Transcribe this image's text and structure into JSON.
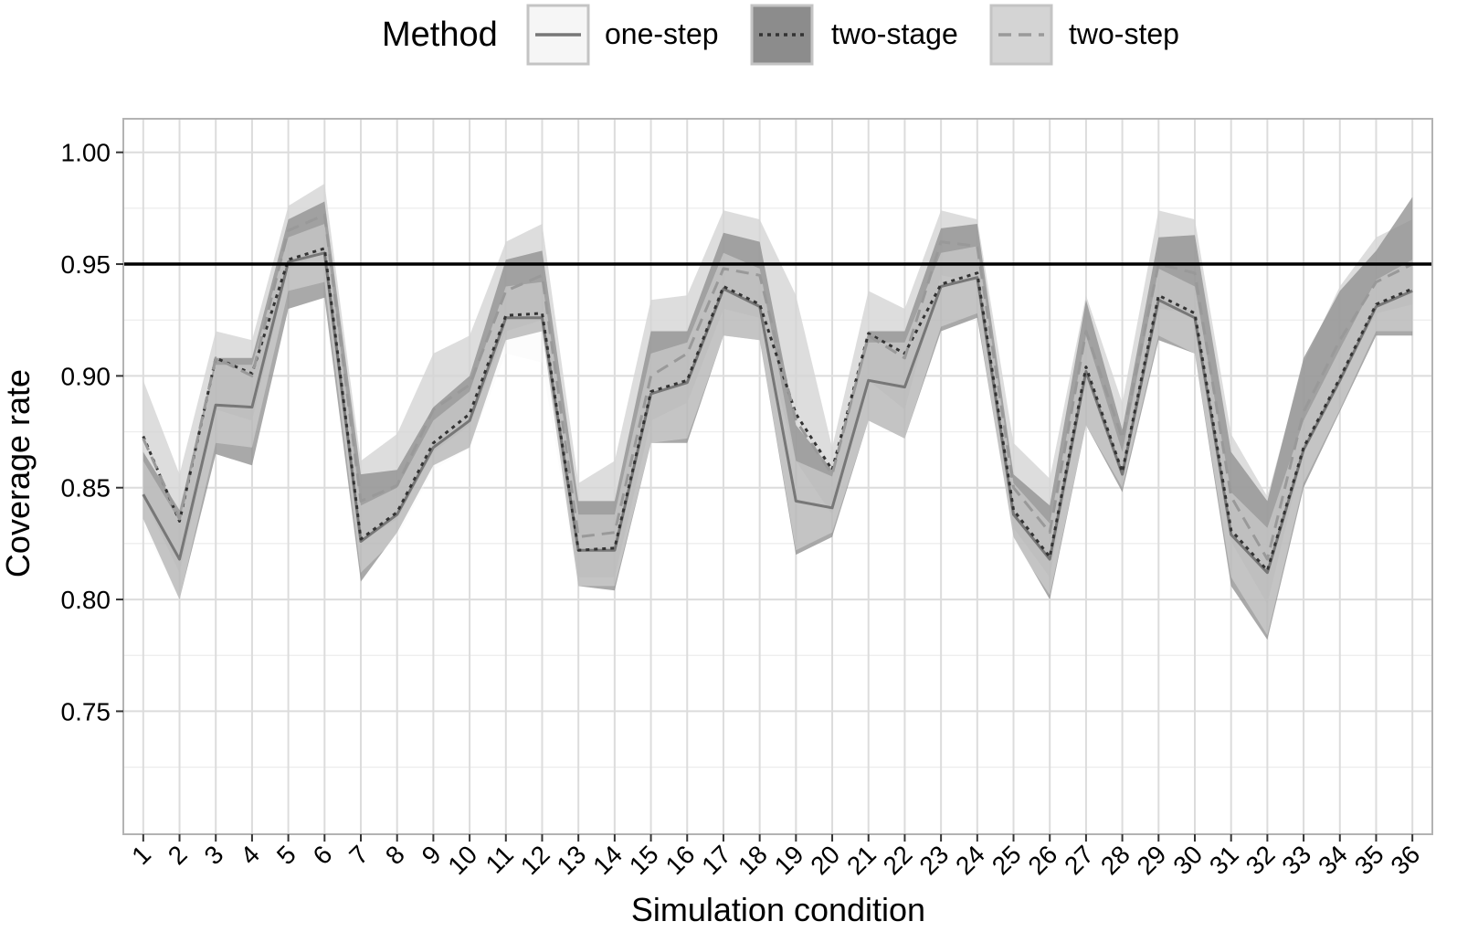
{
  "chart_data": {
    "type": "line",
    "title": "",
    "xlabel": "Simulation condition",
    "ylabel": "Coverage rate",
    "ylim": [
      0.695,
      1.015
    ],
    "yticks": [
      0.75,
      0.8,
      0.85,
      0.9,
      0.95,
      1.0
    ],
    "ytick_labels": [
      "0.75",
      "0.80",
      "0.85",
      "0.90",
      "0.95",
      "1.00"
    ],
    "x": [
      1,
      2,
      3,
      4,
      5,
      6,
      7,
      8,
      9,
      10,
      11,
      12,
      13,
      14,
      15,
      16,
      17,
      18,
      19,
      20,
      21,
      22,
      23,
      24,
      25,
      26,
      27,
      28,
      29,
      30,
      31,
      32,
      33,
      34,
      35,
      36
    ],
    "x_tick_labels": [
      "1",
      "2",
      "3",
      "4",
      "5",
      "6",
      "7",
      "8",
      "9",
      "10",
      "11",
      "12",
      "13",
      "14",
      "15",
      "16",
      "17",
      "18",
      "19",
      "20",
      "21",
      "22",
      "23",
      "24",
      "25",
      "26",
      "27",
      "28",
      "29",
      "30",
      "31",
      "32",
      "33",
      "34",
      "35",
      "36"
    ],
    "reference_line": 0.95,
    "grid": true,
    "legend": {
      "title": "Method",
      "position": "top"
    },
    "series": [
      {
        "name": "one-step",
        "line_style": "solid",
        "band_color": "#f6f6f6",
        "line_color": "#777777",
        "values": [
          0.847,
          0.818,
          0.887,
          0.886,
          0.951,
          0.955,
          0.826,
          0.838,
          0.868,
          0.88,
          0.926,
          0.926,
          0.822,
          0.822,
          0.892,
          0.897,
          0.939,
          0.931,
          0.844,
          0.841,
          0.898,
          0.895,
          0.94,
          0.944,
          0.838,
          0.818,
          0.902,
          0.856,
          0.934,
          0.926,
          0.829,
          0.812,
          0.867,
          0.898,
          0.931,
          0.938
        ],
        "lower": [
          0.833,
          0.8,
          0.87,
          0.868,
          0.938,
          0.942,
          0.812,
          0.828,
          0.858,
          0.868,
          0.91,
          0.906,
          0.806,
          0.806,
          0.87,
          0.872,
          0.918,
          0.916,
          0.822,
          0.83,
          0.88,
          0.872,
          0.922,
          0.928,
          0.826,
          0.802,
          0.878,
          0.85,
          0.918,
          0.91,
          0.81,
          0.784,
          0.852,
          0.885,
          0.92,
          0.92
        ],
        "upper": [
          0.862,
          0.835,
          0.905,
          0.905,
          0.962,
          0.968,
          0.842,
          0.85,
          0.88,
          0.893,
          0.94,
          0.942,
          0.838,
          0.838,
          0.91,
          0.915,
          0.955,
          0.948,
          0.862,
          0.855,
          0.915,
          0.915,
          0.955,
          0.958,
          0.852,
          0.834,
          0.918,
          0.866,
          0.948,
          0.94,
          0.848,
          0.832,
          0.88,
          0.912,
          0.943,
          0.952
        ]
      },
      {
        "name": "two-stage",
        "line_style": "dotted",
        "band_color": "#8c8c8c",
        "line_color": "#333333",
        "values": [
          0.873,
          0.835,
          0.908,
          0.901,
          0.952,
          0.957,
          0.827,
          0.839,
          0.87,
          0.883,
          0.927,
          0.928,
          0.822,
          0.823,
          0.893,
          0.898,
          0.94,
          0.932,
          0.883,
          0.858,
          0.919,
          0.91,
          0.941,
          0.946,
          0.84,
          0.819,
          0.904,
          0.857,
          0.936,
          0.928,
          0.831,
          0.813,
          0.868,
          0.899,
          0.932,
          0.939
        ],
        "lower": [
          0.836,
          0.8,
          0.865,
          0.86,
          0.93,
          0.935,
          0.808,
          0.83,
          0.86,
          0.868,
          0.916,
          0.92,
          0.806,
          0.804,
          0.87,
          0.87,
          0.918,
          0.916,
          0.82,
          0.828,
          0.88,
          0.872,
          0.92,
          0.926,
          0.828,
          0.8,
          0.878,
          0.848,
          0.916,
          0.91,
          0.806,
          0.782,
          0.85,
          0.884,
          0.918,
          0.918
        ],
        "upper": [
          0.866,
          0.84,
          0.908,
          0.908,
          0.97,
          0.978,
          0.856,
          0.858,
          0.886,
          0.9,
          0.952,
          0.956,
          0.844,
          0.844,
          0.92,
          0.92,
          0.964,
          0.96,
          0.878,
          0.858,
          0.92,
          0.92,
          0.966,
          0.968,
          0.856,
          0.842,
          0.934,
          0.876,
          0.962,
          0.963,
          0.866,
          0.844,
          0.908,
          0.938,
          0.956,
          0.98
        ]
      },
      {
        "name": "two-step",
        "line_style": "dashed",
        "band_color": "#d4d4d4",
        "line_color": "#999999",
        "values": [
          0.872,
          0.836,
          0.908,
          0.9,
          0.965,
          0.972,
          0.844,
          0.851,
          0.885,
          0.896,
          0.938,
          0.945,
          0.828,
          0.83,
          0.9,
          0.91,
          0.948,
          0.945,
          0.88,
          0.856,
          0.918,
          0.908,
          0.96,
          0.958,
          0.85,
          0.83,
          0.92,
          0.872,
          0.95,
          0.946,
          0.846,
          0.818,
          0.884,
          0.916,
          0.942,
          0.95
        ],
        "lower": [
          0.846,
          0.812,
          0.885,
          0.88,
          0.948,
          0.955,
          0.826,
          0.836,
          0.866,
          0.878,
          0.92,
          0.925,
          0.81,
          0.81,
          0.88,
          0.888,
          0.93,
          0.926,
          0.862,
          0.838,
          0.898,
          0.885,
          0.945,
          0.942,
          0.832,
          0.81,
          0.9,
          0.855,
          0.93,
          0.928,
          0.826,
          0.798,
          0.866,
          0.898,
          0.928,
          0.932
        ],
        "upper": [
          0.898,
          0.856,
          0.92,
          0.916,
          0.976,
          0.986,
          0.862,
          0.874,
          0.91,
          0.918,
          0.96,
          0.968,
          0.852,
          0.862,
          0.934,
          0.936,
          0.974,
          0.97,
          0.936,
          0.868,
          0.938,
          0.93,
          0.974,
          0.97,
          0.87,
          0.854,
          0.936,
          0.888,
          0.974,
          0.97,
          0.874,
          0.846,
          0.906,
          0.94,
          0.962,
          0.97
        ]
      }
    ]
  }
}
